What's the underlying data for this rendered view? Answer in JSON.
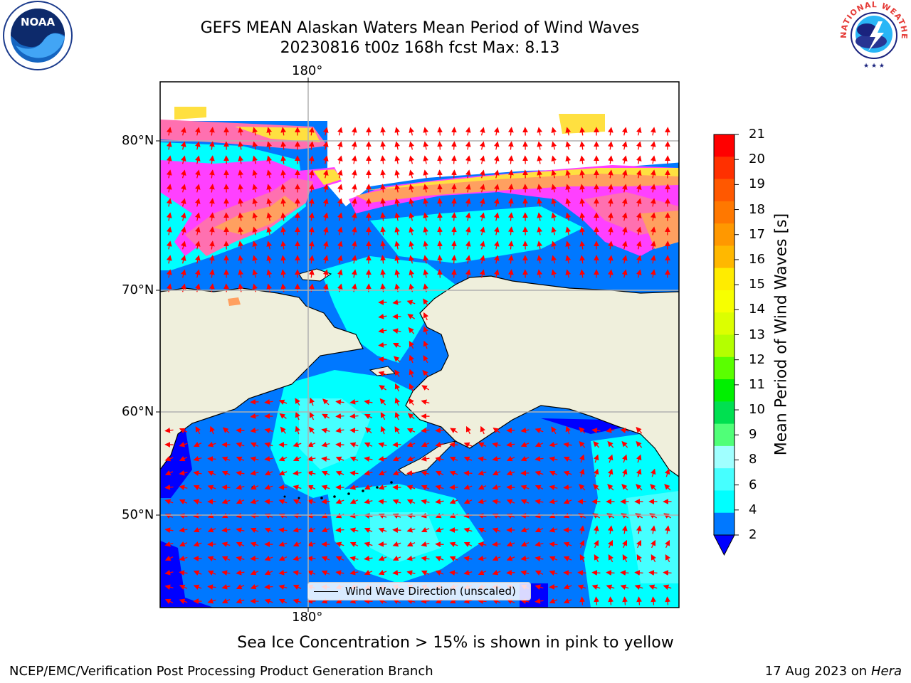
{
  "header": {
    "title_line1": "GEFS MEAN Alaskan Waters Mean Period of Wind Waves",
    "title_line2": "20230816 t00z 168h fcst   Max: 8.13"
  },
  "logos": {
    "left": {
      "name": "noaa-logo",
      "text": "NOAA"
    },
    "right": {
      "name": "national-weather-service-logo",
      "text": "NATIONAL WEATHER SERVICE"
    }
  },
  "map": {
    "lon_label_top": "180°",
    "lon_label_bottom": "180°",
    "lat_labels": [
      "80°N",
      "70°N",
      "60°N",
      "50°N"
    ],
    "land_color": "#efefdc",
    "ocean_colors": {
      "band_2_4": "#0078ff",
      "band_4_6": "#00ffff",
      "band_6_8": "#46ffff",
      "below_2": "#0000ff"
    },
    "ice_colors": [
      "#ff40ff",
      "#ff70b0",
      "#ffa060",
      "#ffe040",
      "#ffff90"
    ],
    "arrow_color": "#ff0000",
    "legend_label": "Wind Wave Direction (unscaled)"
  },
  "colorbar": {
    "label": "Mean Period of Wind Waves [s]",
    "ticks": [
      "21",
      "20",
      "19",
      "18",
      "17",
      "16",
      "15",
      "14",
      "13",
      "12",
      "11",
      "10",
      "9",
      "8",
      "6",
      "4",
      "2"
    ],
    "colors": [
      "#ff0000",
      "#ff3000",
      "#ff5800",
      "#ff7800",
      "#ff9800",
      "#ffb800",
      "#ffec00",
      "#f7ff00",
      "#dcff00",
      "#b4ff00",
      "#5aff00",
      "#00f000",
      "#00e050",
      "#50ff78",
      "#a0ffff",
      "#46ffff",
      "#00ffff",
      "#0078ff"
    ],
    "extend_color": "#0000ff"
  },
  "caption": "Sea Ice Concentration > 15% is shown in pink to yellow",
  "footer": {
    "left": "NCEP/EMC/Verification Post Processing Product Generation Branch",
    "right_date": "17 Aug 2023 on",
    "right_host": "Hera"
  }
}
